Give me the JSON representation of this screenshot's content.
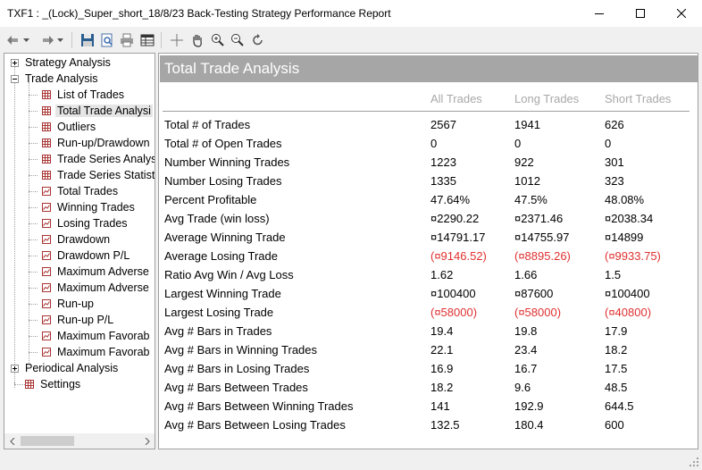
{
  "window": {
    "title": "TXF1 : _(Lock)_Super_short_18/8/23 Back-Testing Strategy Performance Report"
  },
  "toolbar": {
    "icons": [
      "back-icon",
      "back-dropdown-icon",
      "forward-icon",
      "forward-dropdown-icon",
      "save-icon",
      "print-preview-icon",
      "print-icon",
      "table-view-icon",
      "crosshair-icon",
      "hand-icon",
      "zoom-in-icon",
      "zoom-out-icon",
      "reset-zoom-icon"
    ]
  },
  "tree": {
    "strategy_analysis": "Strategy Analysis",
    "trade_analysis": "Trade Analysis",
    "items": [
      {
        "label": "List of Trades",
        "icon": "grid-icon"
      },
      {
        "label": "Total Trade Analysi",
        "icon": "grid-icon"
      },
      {
        "label": "Outliers",
        "icon": "grid-icon"
      },
      {
        "label": "Run-up/Drawdown",
        "icon": "grid-icon"
      },
      {
        "label": "Trade Series Analys",
        "icon": "grid-icon"
      },
      {
        "label": "Trade Series Statist",
        "icon": "grid-icon"
      },
      {
        "label": "Total Trades",
        "icon": "chart-icon"
      },
      {
        "label": "Winning Trades",
        "icon": "chart-icon"
      },
      {
        "label": "Losing Trades",
        "icon": "chart-icon"
      },
      {
        "label": "Drawdown",
        "icon": "chart-icon"
      },
      {
        "label": "Drawdown P/L",
        "icon": "chart-icon"
      },
      {
        "label": "Maximum Adverse",
        "icon": "chart-icon"
      },
      {
        "label": "Maximum Adverse",
        "icon": "chart-icon"
      },
      {
        "label": "Run-up",
        "icon": "chart-icon"
      },
      {
        "label": "Run-up P/L",
        "icon": "chart-icon"
      },
      {
        "label": "Maximum Favorab",
        "icon": "chart-icon"
      },
      {
        "label": "Maximum Favorab",
        "icon": "chart-icon"
      }
    ],
    "periodical_analysis": "Periodical Analysis",
    "settings": "Settings"
  },
  "report": {
    "title": "Total Trade Analysis",
    "columns": [
      "All Trades",
      "Long Trades",
      "Short Trades"
    ],
    "rows": [
      {
        "label": "Total # of Trades",
        "all": "2567",
        "long": "1941",
        "short": "626"
      },
      {
        "label": "Total # of Open Trades",
        "all": "0",
        "long": "0",
        "short": "0"
      },
      {
        "label": "Number Winning Trades",
        "all": "1223",
        "long": "922",
        "short": "301"
      },
      {
        "label": "Number Losing Trades",
        "all": "1335",
        "long": "1012",
        "short": "323"
      },
      {
        "label": "Percent Profitable",
        "all": "47.64%",
        "long": "47.5%",
        "short": "48.08%"
      },
      {
        "label": "Avg Trade (win  loss)",
        "all": "¤2290.22",
        "long": "¤2371.46",
        "short": "¤2038.34"
      },
      {
        "label": "Average Winning Trade",
        "all": "¤14791.17",
        "long": "¤14755.97",
        "short": "¤14899"
      },
      {
        "label": "Average Losing Trade",
        "all": "(¤9146.52)",
        "long": "(¤8895.26)",
        "short": "(¤9933.75)",
        "negative": true
      },
      {
        "label": "Ratio Avg Win / Avg Loss",
        "all": "1.62",
        "long": "1.66",
        "short": "1.5"
      },
      {
        "label": "Largest Winning Trade",
        "all": "¤100400",
        "long": "¤87600",
        "short": "¤100400"
      },
      {
        "label": "Largest Losing Trade",
        "all": "(¤58000)",
        "long": "(¤58000)",
        "short": "(¤40800)",
        "negative": true
      },
      {
        "label": "Avg # Bars in Trades",
        "all": "19.4",
        "long": "19.8",
        "short": "17.9"
      },
      {
        "label": "Avg # Bars in Winning Trades",
        "all": "22.1",
        "long": "23.4",
        "short": "18.2"
      },
      {
        "label": "Avg # Bars in Losing Trades",
        "all": "16.9",
        "long": "16.7",
        "short": "17.5"
      },
      {
        "label": "Avg # Bars Between Trades",
        "all": "18.2",
        "long": "9.6",
        "short": "48.5"
      },
      {
        "label": "Avg # Bars Between Winning Trades",
        "all": "141",
        "long": "192.9",
        "short": "644.5"
      },
      {
        "label": "Avg # Bars Between Losing Trades",
        "all": "132.5",
        "long": "180.4",
        "short": "600"
      }
    ]
  },
  "colors": {
    "header_bg": "#a6a6a6",
    "column_header": "#a8a8a8",
    "negative": "#e03030"
  }
}
